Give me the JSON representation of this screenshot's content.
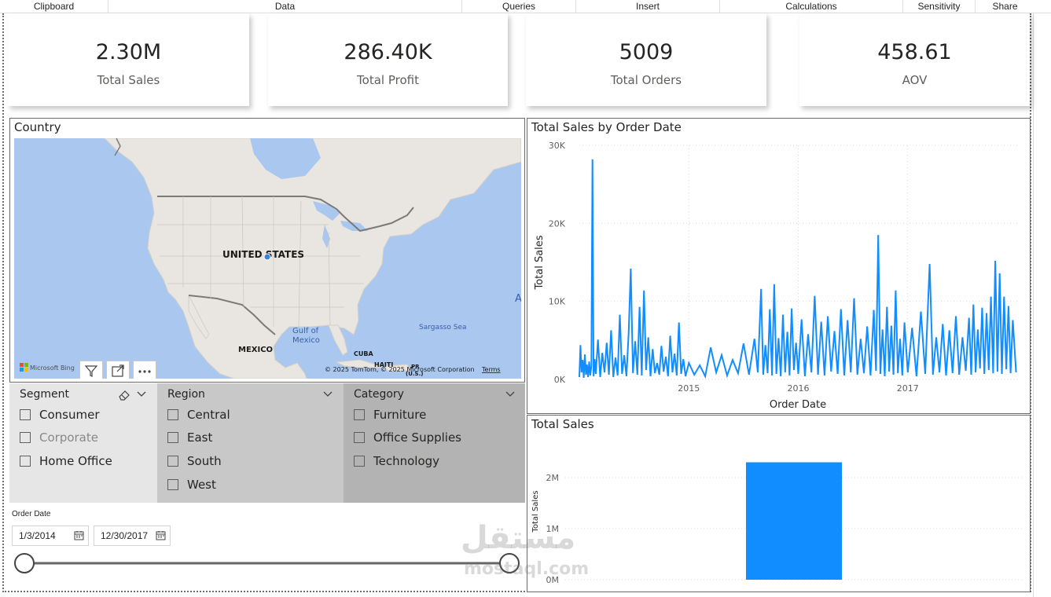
{
  "ribbon": {
    "groups": [
      "Clipboard",
      "Data",
      "Queries",
      "Insert",
      "Calculations",
      "Sensitivity",
      "Share"
    ]
  },
  "kpis": [
    {
      "value": "2.30M",
      "label": "Total Sales"
    },
    {
      "value": "286.40K",
      "label": "Total Profit"
    },
    {
      "value": "5009",
      "label": "Total Orders"
    },
    {
      "value": "458.61",
      "label": "AOV"
    }
  ],
  "map": {
    "title": "Country",
    "labels": {
      "country": "UNITED STATES",
      "mexico": "MEXICO",
      "gulf1": "Gulf of",
      "gulf2": "Mexico",
      "sargasso": "Sargasso Sea",
      "cuba": "CUBA",
      "haiti": "HAITI",
      "pr": "PR",
      "us": "(U.S.)",
      "edge_a": "A"
    },
    "bing_logo": "Microsoft Bing",
    "copyright": "© 2025 TomTom, © 2025 Microsoft Corporation",
    "terms": "Terms",
    "buttons": [
      "filter-icon",
      "focus-mode-icon",
      "more-options-icon"
    ],
    "water_color": "#a9c7ef",
    "land_color": "#e9e6e1"
  },
  "slicers": {
    "segment": {
      "title": "Segment",
      "items": [
        "Consumer",
        "Corporate",
        "Home Office"
      ],
      "bg": "#e6e6e6"
    },
    "region": {
      "title": "Region",
      "items": [
        "Central",
        "East",
        "South",
        "West"
      ],
      "bg": "#c8c8c8"
    },
    "category": {
      "title": "Category",
      "items": [
        "Furniture",
        "Office Supplies",
        "Technology"
      ],
      "bg": "#b3b3b3"
    }
  },
  "date_slicer": {
    "title": "Order Date",
    "start": "1/3/2014",
    "end": "12/30/2017"
  },
  "chart_data": [
    {
      "type": "line",
      "title": "Total Sales by Order Date",
      "xlabel": "Order Date",
      "ylabel": "Total Sales",
      "xticks": [
        "2015",
        "2016",
        "2017"
      ],
      "yticks": [
        "0K",
        "10K",
        "20K",
        "30K"
      ],
      "ylim": [
        0,
        30000
      ],
      "xlim": [
        "2014-01-03",
        "2017-12-30"
      ],
      "grid": true,
      "color": "#118dff",
      "series": [
        {
          "values": [
            [
              2014.0,
              300
            ],
            [
              2014.01,
              4400
            ],
            [
              2014.02,
              900
            ],
            [
              2014.03,
              2500
            ],
            [
              2014.04,
              200
            ],
            [
              2014.05,
              3200
            ],
            [
              2014.06,
              600
            ],
            [
              2014.07,
              1900
            ],
            [
              2014.08,
              300
            ],
            [
              2014.09,
              2300
            ],
            [
              2014.1,
              500
            ],
            [
              2014.11,
              1700
            ],
            [
              2014.12,
              28200
            ],
            [
              2014.13,
              400
            ],
            [
              2014.14,
              2600
            ],
            [
              2014.15,
              700
            ],
            [
              2014.17,
              5100
            ],
            [
              2014.19,
              300
            ],
            [
              2014.21,
              3400
            ],
            [
              2014.23,
              900
            ],
            [
              2014.25,
              4700
            ],
            [
              2014.27,
              600
            ],
            [
              2014.29,
              6300
            ],
            [
              2014.31,
              300
            ],
            [
              2014.33,
              2800
            ],
            [
              2014.35,
              500
            ],
            [
              2014.37,
              8300
            ],
            [
              2014.39,
              700
            ],
            [
              2014.41,
              3100
            ],
            [
              2014.43,
              400
            ],
            [
              2014.45,
              5900
            ],
            [
              2014.47,
              14200
            ],
            [
              2014.49,
              800
            ],
            [
              2014.51,
              4900
            ],
            [
              2014.53,
              600
            ],
            [
              2014.55,
              9300
            ],
            [
              2014.57,
              500
            ],
            [
              2014.59,
              11400
            ],
            [
              2014.61,
              1200
            ],
            [
              2014.63,
              5400
            ],
            [
              2014.65,
              400
            ],
            [
              2014.67,
              3900
            ],
            [
              2014.69,
              800
            ],
            [
              2014.71,
              2100
            ],
            [
              2014.73,
              600
            ],
            [
              2014.75,
              4300
            ],
            [
              2014.77,
              1000
            ],
            [
              2014.79,
              2900
            ],
            [
              2014.81,
              400
            ],
            [
              2014.83,
              5600
            ],
            [
              2014.85,
              900
            ],
            [
              2014.87,
              3300
            ],
            [
              2014.89,
              500
            ],
            [
              2014.91,
              7300
            ],
            [
              2014.93,
              700
            ],
            [
              2014.95,
              2600
            ],
            [
              2014.97,
              400
            ],
            [
              2015.0,
              2100
            ],
            [
              2015.05,
              600
            ],
            [
              2015.1,
              1800
            ],
            [
              2015.15,
              400
            ],
            [
              2015.2,
              4100
            ],
            [
              2015.25,
              900
            ],
            [
              2015.3,
              3100
            ],
            [
              2015.35,
              500
            ],
            [
              2015.4,
              2500
            ],
            [
              2015.45,
              800
            ],
            [
              2015.5,
              4600
            ],
            [
              2015.55,
              600
            ],
            [
              2015.6,
              5200
            ],
            [
              2015.63,
              900
            ],
            [
              2015.66,
              11600
            ],
            [
              2015.68,
              600
            ],
            [
              2015.7,
              4400
            ],
            [
              2015.72,
              800
            ],
            [
              2015.74,
              9000
            ],
            [
              2015.76,
              500
            ],
            [
              2015.78,
              12200
            ],
            [
              2015.8,
              700
            ],
            [
              2015.82,
              5300
            ],
            [
              2015.84,
              400
            ],
            [
              2015.86,
              8300
            ],
            [
              2015.88,
              900
            ],
            [
              2015.9,
              6100
            ],
            [
              2015.92,
              500
            ],
            [
              2015.94,
              9100
            ],
            [
              2015.96,
              1200
            ],
            [
              2015.98,
              4700
            ],
            [
              2016.0,
              700
            ],
            [
              2016.03,
              7700
            ],
            [
              2016.06,
              400
            ],
            [
              2016.09,
              5800
            ],
            [
              2016.12,
              900
            ],
            [
              2016.15,
              10700
            ],
            [
              2016.18,
              600
            ],
            [
              2016.21,
              7400
            ],
            [
              2016.24,
              500
            ],
            [
              2016.27,
              8100
            ],
            [
              2016.3,
              1000
            ],
            [
              2016.33,
              6200
            ],
            [
              2016.36,
              700
            ],
            [
              2016.39,
              9000
            ],
            [
              2016.42,
              500
            ],
            [
              2016.45,
              7600
            ],
            [
              2016.48,
              900
            ],
            [
              2016.51,
              10400
            ],
            [
              2016.54,
              600
            ],
            [
              2016.57,
              5200
            ],
            [
              2016.6,
              800
            ],
            [
              2016.63,
              6800
            ],
            [
              2016.66,
              500
            ],
            [
              2016.69,
              8900
            ],
            [
              2016.71,
              1100
            ],
            [
              2016.73,
              18500
            ],
            [
              2016.75,
              700
            ],
            [
              2016.77,
              6400
            ],
            [
              2016.79,
              400
            ],
            [
              2016.81,
              9300
            ],
            [
              2016.83,
              1000
            ],
            [
              2016.85,
              6900
            ],
            [
              2016.87,
              600
            ],
            [
              2016.89,
              11400
            ],
            [
              2016.91,
              800
            ],
            [
              2016.93,
              5200
            ],
            [
              2016.95,
              500
            ],
            [
              2016.97,
              7300
            ],
            [
              2017.0,
              900
            ],
            [
              2017.04,
              6600
            ],
            [
              2017.08,
              400
            ],
            [
              2017.12,
              8700
            ],
            [
              2017.16,
              700
            ],
            [
              2017.2,
              14800
            ],
            [
              2017.23,
              600
            ],
            [
              2017.26,
              5400
            ],
            [
              2017.29,
              900
            ],
            [
              2017.32,
              7100
            ],
            [
              2017.35,
              500
            ],
            [
              2017.38,
              6300
            ],
            [
              2017.41,
              800
            ],
            [
              2017.44,
              8100
            ],
            [
              2017.47,
              600
            ],
            [
              2017.5,
              5400
            ],
            [
              2017.53,
              1100
            ],
            [
              2017.56,
              7900
            ],
            [
              2017.58,
              600
            ],
            [
              2017.6,
              9600
            ],
            [
              2017.62,
              900
            ],
            [
              2017.64,
              6400
            ],
            [
              2017.66,
              1400
            ],
            [
              2017.68,
              9200
            ],
            [
              2017.7,
              700
            ],
            [
              2017.72,
              8500
            ],
            [
              2017.74,
              1200
            ],
            [
              2017.76,
              10600
            ],
            [
              2017.78,
              800
            ],
            [
              2017.8,
              15200
            ],
            [
              2017.82,
              1000
            ],
            [
              2017.84,
              13600
            ],
            [
              2017.86,
              700
            ],
            [
              2017.88,
              10600
            ],
            [
              2017.9,
              1300
            ],
            [
              2017.92,
              9400
            ],
            [
              2017.94,
              800
            ],
            [
              2017.96,
              7600
            ],
            [
              2017.98,
              3100
            ],
            [
              2017.99,
              900
            ]
          ]
        }
      ]
    },
    {
      "type": "bar",
      "title": "Total Sales",
      "xlabel": "",
      "ylabel": "Total Sales",
      "categories": [
        ""
      ],
      "values": [
        2300000
      ],
      "yticks": [
        "0M",
        "1M",
        "2M"
      ],
      "ylim": [
        0,
        2600000
      ],
      "grid": true,
      "color": "#118dff"
    }
  ],
  "watermark": {
    "arabic": "مستقل",
    "latin": "mostaql.com"
  }
}
